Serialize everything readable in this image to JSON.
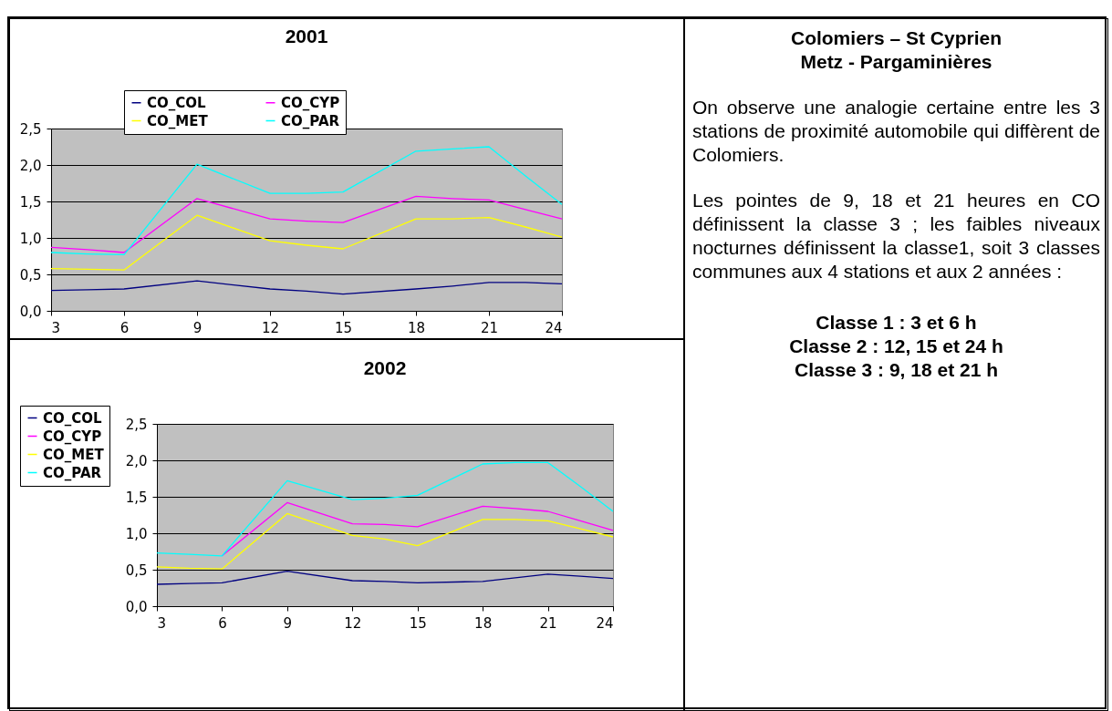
{
  "chart_data": [
    {
      "type": "line",
      "title": "2001",
      "x": [
        3,
        4.5,
        6,
        9,
        12,
        13.5,
        15,
        18,
        19.5,
        21,
        22.5,
        24
      ],
      "xlim": [
        3,
        24
      ],
      "xticks": [
        3,
        6,
        9,
        12,
        15,
        18,
        21,
        24
      ],
      "ylim": [
        0,
        2.5
      ],
      "yticks": [
        {
          "value": 0,
          "label": "0,0"
        },
        {
          "value": 0.5,
          "label": "0,5"
        },
        {
          "value": 1,
          "label": "1,0"
        },
        {
          "value": 1.5,
          "label": "1,5"
        },
        {
          "value": 2,
          "label": "2,0"
        },
        {
          "value": 2.5,
          "label": "2,5"
        }
      ],
      "grid": "y",
      "legend": "top",
      "series": [
        {
          "name": "CO_COL",
          "color": "#000080",
          "values": [
            0.28,
            0.29,
            0.3,
            0.41,
            0.3,
            0.27,
            0.23,
            0.3,
            0.34,
            0.39,
            0.39,
            0.37
          ]
        },
        {
          "name": "CO_CYP",
          "color": "#ff00ff",
          "values": [
            0.87,
            0.84,
            0.8,
            1.54,
            1.26,
            1.23,
            1.21,
            1.57,
            1.54,
            1.52,
            1.39,
            1.26
          ]
        },
        {
          "name": "CO_MET",
          "color": "#ffff00",
          "values": [
            0.58,
            0.57,
            0.56,
            1.31,
            0.96,
            0.9,
            0.85,
            1.26,
            1.26,
            1.28,
            1.15,
            1.01
          ]
        },
        {
          "name": "CO_PAR",
          "color": "#00ffff",
          "values": [
            0.8,
            0.78,
            0.77,
            2.01,
            1.61,
            1.61,
            1.63,
            2.19,
            2.22,
            2.25,
            1.85,
            1.46
          ]
        }
      ]
    },
    {
      "type": "line",
      "title": "2002",
      "x": [
        3,
        4.5,
        6,
        9,
        12,
        13.5,
        15,
        18,
        19.5,
        21,
        22.5,
        24
      ],
      "xlim": [
        3,
        24
      ],
      "xticks": [
        3,
        6,
        9,
        12,
        15,
        18,
        21,
        24
      ],
      "ylim": [
        0,
        2.5
      ],
      "yticks": [
        {
          "value": 0,
          "label": "0,0"
        },
        {
          "value": 0.5,
          "label": "0,5"
        },
        {
          "value": 1,
          "label": "1,0"
        },
        {
          "value": 1.5,
          "label": "1,5"
        },
        {
          "value": 2,
          "label": "2,0"
        },
        {
          "value": 2.5,
          "label": "2,5"
        }
      ],
      "grid": "y",
      "legend": "top left",
      "series": [
        {
          "name": "CO_COL",
          "color": "#000080",
          "values": [
            0.3,
            0.31,
            0.32,
            0.48,
            0.35,
            0.34,
            0.32,
            0.34,
            0.39,
            0.44,
            0.41,
            0.38
          ]
        },
        {
          "name": "CO_CYP",
          "color": "#ff00ff",
          "values": [
            null,
            null,
            0.69,
            1.42,
            1.13,
            1.12,
            1.09,
            1.37,
            1.34,
            1.3,
            1.17,
            1.04
          ]
        },
        {
          "name": "CO_MET",
          "color": "#ffff00",
          "values": [
            0.54,
            0.52,
            0.51,
            1.27,
            0.97,
            0.92,
            0.83,
            1.19,
            1.19,
            1.17,
            1.06,
            0.95
          ]
        },
        {
          "name": "CO_PAR",
          "color": "#00ffff",
          "values": [
            0.73,
            0.71,
            0.69,
            1.72,
            1.46,
            1.48,
            1.52,
            1.95,
            1.97,
            1.97,
            1.64,
            1.3
          ]
        }
      ]
    },
    {
      "type": "other",
      "title": "Colomiers – St Cyprien",
      "subtitle": "Metz - Pargaminières",
      "annotations": [
        "On observe une analogie certaine entre les 3 stations de proximité automobile qui diffèrent de Colomiers.",
        "Les pointes de 9, 18 et 21 heures en CO définissent la classe 3 ; les faibles niveaux nocturnes définissent la classe1, soit 3 classes communes aux 4 stations et aux 2 années :",
        "Classe 1 :  3 et 6  h",
        "Classe 2  :  12, 15 et 24 h",
        "Classe 3 : 9, 18 et 21 h"
      ]
    }
  ]
}
